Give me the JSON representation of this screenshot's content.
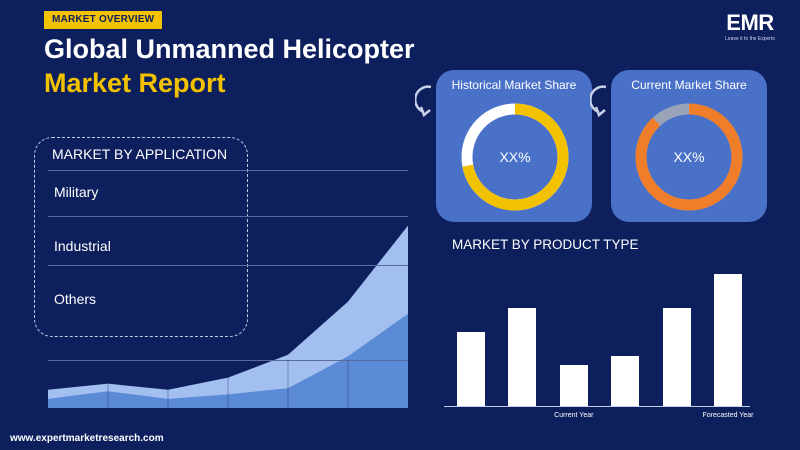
{
  "header": {
    "badge": "MARKET OVERVIEW",
    "title_line1": "Global Unmanned Helicopter",
    "title_line2": "Market Report"
  },
  "logo": {
    "text": "EMR",
    "tagline": "Leave it to the Experts"
  },
  "application": {
    "heading": "MARKET BY APPLICATION",
    "items": [
      "Military",
      "Industrial",
      "Others"
    ]
  },
  "historical": {
    "title": "Historical Market Share",
    "value": "XX%",
    "share": 0.72
  },
  "current": {
    "title": "Current Market Share",
    "value": "XX%",
    "share": 0.88
  },
  "product": {
    "heading": "MARKET BY PRODUCT TYPE"
  },
  "chart_data": [
    {
      "type": "area",
      "series": [
        {
          "values": [
            1.2,
            1.6,
            1.2,
            2.0,
            3.5,
            7.0,
            12.0
          ]
        },
        {
          "values": [
            0.6,
            1.1,
            0.6,
            0.9,
            1.3,
            3.4,
            6.2
          ]
        }
      ],
      "ylim": [
        0,
        12.5
      ],
      "colors": [
        "#a3bff0",
        "#5b8ad6"
      ]
    },
    {
      "type": "bar",
      "categories": [
        "",
        "",
        "Current Year",
        "",
        "",
        "Forecasted Year"
      ],
      "values": [
        3.1,
        4.1,
        1.7,
        2.1,
        4.1,
        5.5
      ],
      "ylim": [
        0,
        5.5
      ]
    }
  ],
  "colors": {
    "background": "#0d1f5c",
    "accent_yellow": "#f2c200",
    "card_blue": "#4a71c8",
    "donut_orange": "#ef7d2a",
    "donut_grey": "#9aa4b8"
  },
  "footer": {
    "url": "www.expertmarketresearch.com"
  }
}
